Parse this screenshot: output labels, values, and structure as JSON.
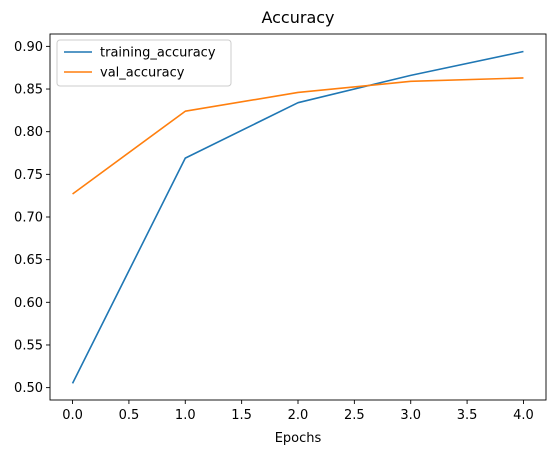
{
  "chart_data": {
    "type": "line",
    "title": "Accuracy",
    "xlabel": "Epochs",
    "ylabel": "",
    "x": [
      0,
      1,
      2,
      3,
      4
    ],
    "xlim": [
      -0.2,
      4.2
    ],
    "ylim": [
      0.4855,
      0.9145
    ],
    "xticks": [
      0.0,
      0.5,
      1.0,
      1.5,
      2.0,
      2.5,
      3.0,
      3.5,
      4.0
    ],
    "xtick_labels": [
      "0.0",
      "0.5",
      "1.0",
      "1.5",
      "2.0",
      "2.5",
      "3.0",
      "3.5",
      "4.0"
    ],
    "yticks": [
      0.5,
      0.55,
      0.6,
      0.65,
      0.7,
      0.75,
      0.8,
      0.85,
      0.9
    ],
    "ytick_labels": [
      "0.50",
      "0.55",
      "0.60",
      "0.65",
      "0.70",
      "0.75",
      "0.80",
      "0.85",
      "0.90"
    ],
    "grid": false,
    "legend_position": "top-left",
    "series": [
      {
        "name": "training_accuracy",
        "color": "#1f77b4",
        "values": [
          0.505,
          0.769,
          0.834,
          0.866,
          0.894
        ]
      },
      {
        "name": "val_accuracy",
        "color": "#ff7f0e",
        "values": [
          0.727,
          0.824,
          0.846,
          0.859,
          0.863
        ]
      }
    ]
  }
}
